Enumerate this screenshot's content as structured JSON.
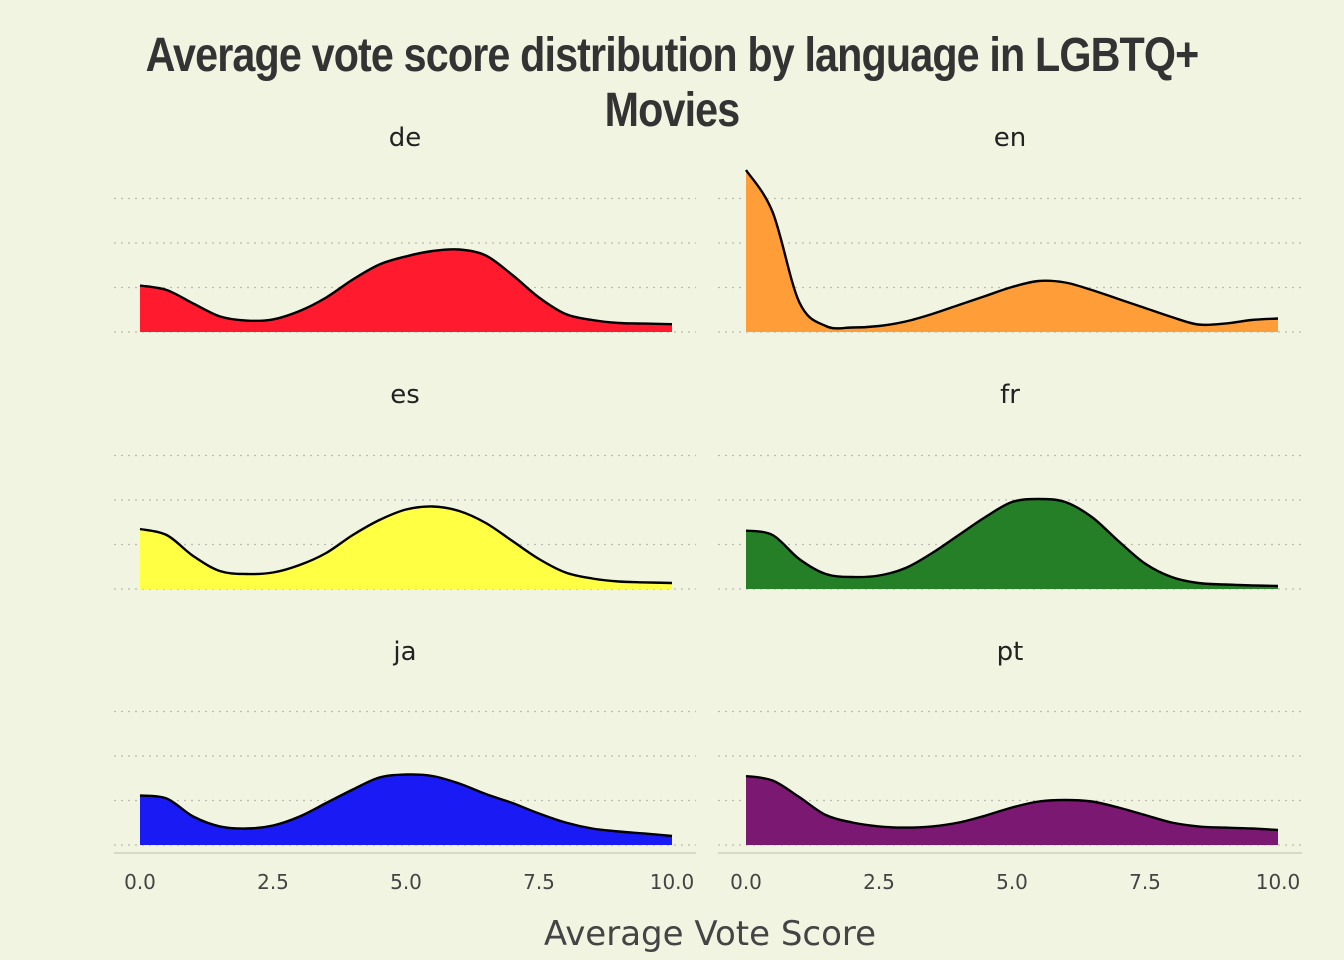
{
  "chart_data": {
    "type": "area",
    "title": "Average vote score distribution by language in LGBTQ+ Movies",
    "xlabel": "Average Vote Score",
    "ylabel": "",
    "xlim": [
      0,
      10
    ],
    "x_ticks": [
      "0.0",
      "2.5",
      "5.0",
      "7.5",
      "10.0"
    ],
    "grid": "horizontal dotted",
    "x": [
      0,
      0.5,
      1,
      1.5,
      2,
      2.5,
      3,
      3.5,
      4,
      4.5,
      5,
      5.5,
      6,
      6.5,
      7,
      7.5,
      8,
      8.5,
      9,
      9.5,
      10
    ],
    "series": [
      {
        "name": "de",
        "color": "#ff1a2e",
        "values": [
          0.155,
          0.14,
          0.095,
          0.052,
          0.038,
          0.042,
          0.07,
          0.115,
          0.175,
          0.225,
          0.252,
          0.27,
          0.275,
          0.255,
          0.19,
          0.115,
          0.06,
          0.04,
          0.03,
          0.028,
          0.026
        ]
      },
      {
        "name": "en",
        "color": "#ff9d38",
        "values": [
          0.54,
          0.4,
          0.1,
          0.02,
          0.015,
          0.02,
          0.035,
          0.06,
          0.09,
          0.12,
          0.15,
          0.17,
          0.165,
          0.14,
          0.11,
          0.08,
          0.05,
          0.025,
          0.028,
          0.04,
          0.045
        ]
      },
      {
        "name": "es",
        "color": "#ffff44",
        "values": [
          0.2,
          0.18,
          0.11,
          0.06,
          0.05,
          0.055,
          0.08,
          0.12,
          0.18,
          0.23,
          0.265,
          0.275,
          0.26,
          0.22,
          0.16,
          0.1,
          0.055,
          0.035,
          0.025,
          0.022,
          0.02
        ]
      },
      {
        "name": "fr",
        "color": "#257f27",
        "values": [
          0.195,
          0.18,
          0.1,
          0.05,
          0.04,
          0.045,
          0.07,
          0.12,
          0.18,
          0.24,
          0.29,
          0.3,
          0.29,
          0.24,
          0.16,
          0.085,
          0.04,
          0.02,
          0.015,
          0.012,
          0.01
        ]
      },
      {
        "name": "ja",
        "color": "#1a1af5",
        "values": [
          0.165,
          0.155,
          0.095,
          0.062,
          0.055,
          0.065,
          0.095,
          0.14,
          0.185,
          0.225,
          0.235,
          0.23,
          0.205,
          0.17,
          0.14,
          0.105,
          0.075,
          0.055,
          0.045,
          0.038,
          0.03
        ]
      },
      {
        "name": "pt",
        "color": "#7b1872",
        "values": [
          0.23,
          0.215,
          0.16,
          0.1,
          0.075,
          0.062,
          0.058,
          0.062,
          0.075,
          0.098,
          0.125,
          0.145,
          0.15,
          0.145,
          0.125,
          0.1,
          0.075,
          0.062,
          0.058,
          0.055,
          0.05
        ]
      }
    ]
  }
}
